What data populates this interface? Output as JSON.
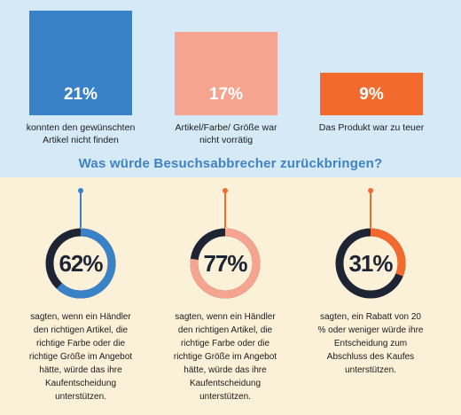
{
  "chart_data": [
    {
      "type": "bar",
      "categories": [
        "konnten den gewünschten Artikel nicht finden",
        "Artikel/Farbe/ Größe war nicht vorrätig",
        "Das Produkt war zu teuer"
      ],
      "values": [
        21,
        17,
        9
      ],
      "value_labels": [
        "21%",
        "17%",
        "9%"
      ],
      "colors": [
        "#3a82c8",
        "#f4a48f",
        "#f26a2e"
      ]
    },
    {
      "type": "pie",
      "title": "Was würde Besuchsabbrecher zurückbringen?",
      "items": [
        {
          "value": 62,
          "label": "62%",
          "caption": "sagten, wenn ein Händler den richtigen Artikel, die richtige Farbe oder die richtige Größe im Angebot hätte, würde das ihre Kaufentscheidung unterstützen.",
          "ring_color": "#3a82c8"
        },
        {
          "value": 77,
          "label": "77%",
          "caption": "sagten, wenn ein Händler den richtigen Artikel, die richtige Farbe oder die richtige Größe im Angebot hätte, würde das ihre Kaufentscheidung unterstützen.",
          "ring_color": "#f4a48f"
        },
        {
          "value": 31,
          "label": "31%",
          "caption": "sagten, ein Rabatt von 20 % oder weniger würde ihre Entscheidung zum Abschluss des Kaufes unterstützen.",
          "ring_color": "#f26a2e"
        }
      ],
      "track_color": "#1d2433"
    }
  ]
}
